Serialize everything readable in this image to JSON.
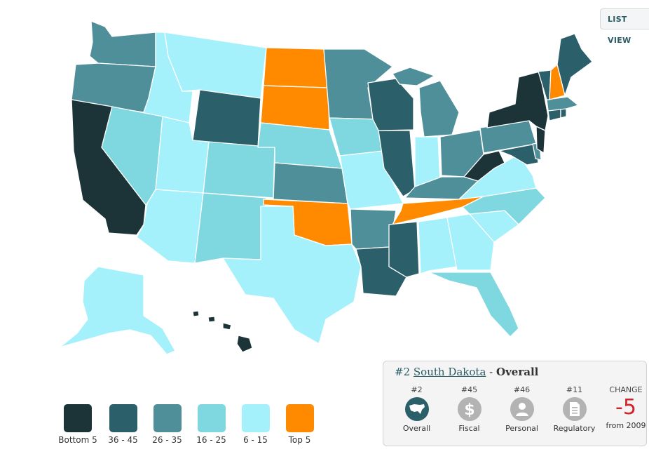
{
  "header": {
    "list_view_label": "LIST VIEW"
  },
  "colors": {
    "bottom5": "#1c3338",
    "r36_45": "#2b5f69",
    "r26_35": "#4f8f99",
    "r16_25": "#7fd8df",
    "r6_15": "#a4f1fb",
    "top5": "#ff8a00",
    "ocean": "#ffffff"
  },
  "legend": [
    {
      "label": "Bottom 5",
      "color": "#1c3338"
    },
    {
      "label": "36 - 45",
      "color": "#2b5f69"
    },
    {
      "label": "26 - 35",
      "color": "#4f8f99"
    },
    {
      "label": "16 - 25",
      "color": "#7fd8df"
    },
    {
      "label": "6 - 15",
      "color": "#a4f1fb"
    },
    {
      "label": "Top 5",
      "color": "#ff8a00"
    }
  ],
  "info": {
    "rank": "#2",
    "state": "South Dakota",
    "separator": " - ",
    "category": "Overall",
    "metrics": [
      {
        "rank": "#2",
        "label": "Overall",
        "icon": "usa-map-icon",
        "active": true
      },
      {
        "rank": "#45",
        "label": "Fiscal",
        "icon": "dollar-icon",
        "active": false
      },
      {
        "rank": "#46",
        "label": "Personal",
        "icon": "person-icon",
        "active": false
      },
      {
        "rank": "#11",
        "label": "Regulatory",
        "icon": "document-icon",
        "active": false
      }
    ],
    "change_header": "CHANGE",
    "change_value": "-5",
    "change_from": "from 2009"
  }
}
